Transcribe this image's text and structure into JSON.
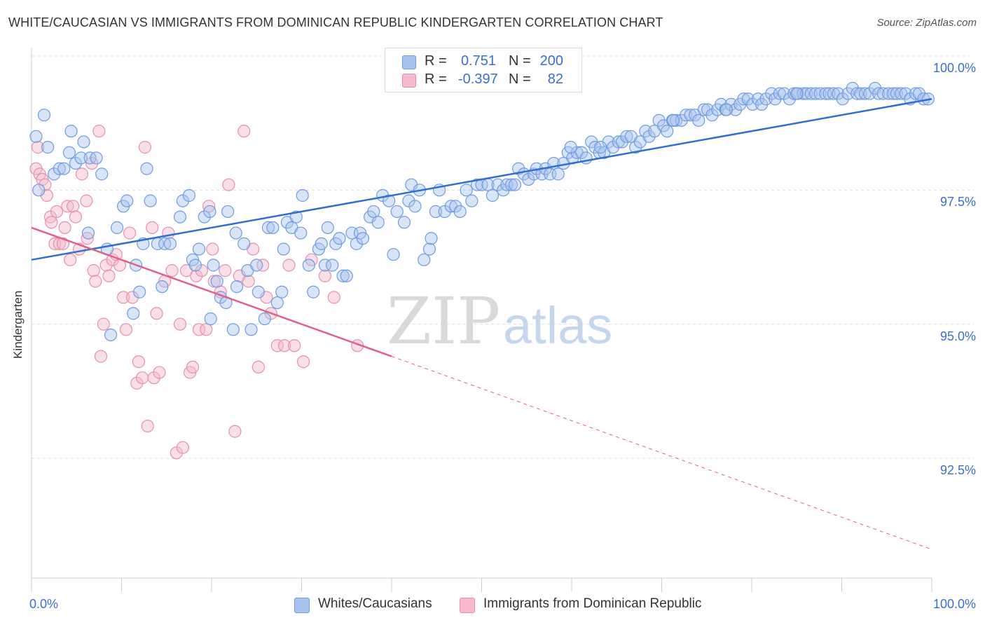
{
  "title": "WHITE/CAUCASIAN VS IMMIGRANTS FROM DOMINICAN REPUBLIC KINDERGARTEN CORRELATION CHART",
  "source": "Source: ZipAtlas.com",
  "watermark": {
    "zip": "ZIP",
    "atlas": "atlas"
  },
  "legend": {
    "rows": [
      {
        "r_label": "R =",
        "r_value": "0.751",
        "n_label": "N =",
        "n_value": "200",
        "color": "#a8c4ee"
      },
      {
        "r_label": "R =",
        "r_value": "-0.397",
        "n_label": "N =",
        "n_value": "82",
        "color": "#f5b8cc"
      }
    ]
  },
  "bottom_legend": [
    "Whites/Caucasians",
    "Immigrants from Dominican Republic"
  ],
  "colors": {
    "blue_fill": "#a8c4ee",
    "blue_line": "#2f6fcf",
    "pink_fill": "#f5b8cc",
    "pink_line": "#e0608a",
    "tick_text": "#3a6fd1"
  },
  "chart_data": {
    "type": "scatter",
    "xlabel": "",
    "ylabel": "Kindergarten",
    "x_tick_labels": [
      "0.0%",
      "100.0%"
    ],
    "y_tick_labels": [
      "100.0%",
      "97.5%",
      "95.0%",
      "92.5%"
    ],
    "xlim": [
      0,
      100
    ],
    "ylim": [
      90.2,
      100.5
    ],
    "y_ticks": [
      100.0,
      97.5,
      95.0,
      92.5
    ],
    "grid": true,
    "series": [
      {
        "name": "Whites/Caucasians",
        "color": "#a8c4ee",
        "trend": {
          "x": [
            0,
            100
          ],
          "y": [
            96.2,
            99.2
          ]
        },
        "points": [
          [
            0.5,
            98.5
          ],
          [
            1.4,
            98.9
          ],
          [
            1.8,
            98.3
          ],
          [
            2.5,
            97.8
          ],
          [
            3.1,
            97.9
          ],
          [
            3.6,
            97.9
          ],
          [
            0.8,
            97.5
          ],
          [
            4.2,
            98.2
          ],
          [
            4.4,
            98.6
          ],
          [
            4.9,
            98.0
          ],
          [
            5.5,
            98.1
          ],
          [
            5.8,
            98.4
          ],
          [
            6.5,
            98.1
          ],
          [
            7.2,
            98.1
          ],
          [
            7.8,
            97.8
          ],
          [
            6.3,
            96.7
          ],
          [
            8.4,
            96.4
          ],
          [
            8.8,
            94.8
          ],
          [
            9.5,
            96.8
          ],
          [
            10.2,
            97.2
          ],
          [
            10.6,
            97.3
          ],
          [
            11.3,
            95.2
          ],
          [
            11.6,
            96.1
          ],
          [
            12.0,
            95.6
          ],
          [
            12.4,
            96.5
          ],
          [
            12.8,
            97.9
          ],
          [
            13.2,
            97.3
          ],
          [
            14.0,
            96.5
          ],
          [
            14.5,
            95.7
          ],
          [
            14.8,
            96.5
          ],
          [
            15.4,
            96.5
          ],
          [
            16.5,
            97.0
          ],
          [
            16.8,
            97.3
          ],
          [
            17.5,
            97.4
          ],
          [
            17.9,
            96.2
          ],
          [
            18.2,
            96.1
          ],
          [
            18.6,
            96.4
          ],
          [
            19.2,
            97.0
          ],
          [
            19.8,
            97.1
          ],
          [
            19.9,
            95.1
          ],
          [
            20.2,
            96.1
          ],
          [
            20.6,
            95.8
          ],
          [
            21.0,
            95.5
          ],
          [
            21.6,
            95.4
          ],
          [
            21.8,
            97.1
          ],
          [
            22.4,
            94.9
          ],
          [
            22.8,
            95.7
          ],
          [
            22.7,
            96.7
          ],
          [
            23.6,
            96.5
          ],
          [
            24.0,
            96.0
          ],
          [
            24.4,
            94.9
          ],
          [
            25.0,
            96.1
          ],
          [
            25.2,
            95.6
          ],
          [
            25.9,
            95.1
          ],
          [
            26.3,
            96.8
          ],
          [
            26.8,
            96.8
          ],
          [
            27.3,
            95.4
          ],
          [
            27.8,
            95.6
          ],
          [
            28.0,
            96.4
          ],
          [
            28.4,
            96.9
          ],
          [
            28.9,
            96.8
          ],
          [
            29.4,
            97.0
          ],
          [
            29.9,
            96.7
          ],
          [
            30.1,
            97.4
          ],
          [
            30.8,
            96.1
          ],
          [
            31.3,
            95.6
          ],
          [
            31.9,
            96.4
          ],
          [
            32.2,
            96.5
          ],
          [
            32.6,
            96.1
          ],
          [
            32.9,
            96.8
          ],
          [
            33.4,
            96.1
          ],
          [
            33.8,
            96.5
          ],
          [
            34.2,
            96.6
          ],
          [
            34.6,
            95.9
          ],
          [
            35.0,
            95.9
          ],
          [
            35.6,
            96.7
          ],
          [
            36.1,
            96.5
          ],
          [
            36.5,
            96.7
          ],
          [
            36.8,
            96.6
          ],
          [
            37.6,
            97.0
          ],
          [
            38.0,
            97.1
          ],
          [
            38.5,
            96.9
          ],
          [
            39.0,
            97.4
          ],
          [
            39.7,
            97.3
          ],
          [
            40.2,
            96.3
          ],
          [
            40.6,
            97.1
          ],
          [
            41.4,
            96.9
          ],
          [
            41.9,
            97.3
          ],
          [
            42.2,
            97.6
          ],
          [
            42.6,
            97.2
          ],
          [
            43.1,
            97.5
          ],
          [
            43.6,
            96.2
          ],
          [
            44.2,
            96.4
          ],
          [
            44.4,
            96.6
          ],
          [
            44.9,
            97.1
          ],
          [
            45.3,
            97.5
          ],
          [
            45.9,
            97.1
          ],
          [
            46.6,
            97.2
          ],
          [
            47.1,
            97.2
          ],
          [
            47.6,
            97.1
          ],
          [
            48.3,
            97.5
          ],
          [
            48.9,
            97.3
          ],
          [
            49.5,
            97.6
          ],
          [
            50.0,
            97.6
          ],
          [
            50.7,
            97.6
          ],
          [
            51.2,
            97.4
          ],
          [
            51.8,
            97.6
          ],
          [
            52.4,
            97.5
          ],
          [
            52.8,
            97.6
          ],
          [
            53.3,
            97.6
          ],
          [
            53.7,
            97.6
          ],
          [
            54.1,
            97.9
          ],
          [
            54.7,
            97.8
          ],
          [
            55.2,
            97.7
          ],
          [
            55.8,
            97.8
          ],
          [
            56.1,
            97.9
          ],
          [
            56.7,
            97.8
          ],
          [
            57.1,
            97.9
          ],
          [
            57.6,
            97.8
          ],
          [
            58.0,
            98.0
          ],
          [
            58.5,
            97.8
          ],
          [
            59.1,
            98.0
          ],
          [
            59.6,
            98.2
          ],
          [
            60.1,
            98.1
          ],
          [
            60.6,
            98.2
          ],
          [
            61.1,
            98.2
          ],
          [
            61.6,
            98.1
          ],
          [
            62.2,
            98.4
          ],
          [
            62.6,
            98.3
          ],
          [
            63.1,
            98.2
          ],
          [
            63.6,
            98.2
          ],
          [
            64.1,
            98.4
          ],
          [
            64.6,
            98.3
          ],
          [
            65.2,
            98.4
          ],
          [
            65.6,
            98.4
          ],
          [
            66.1,
            98.5
          ],
          [
            66.6,
            98.5
          ],
          [
            67.1,
            98.3
          ],
          [
            67.6,
            98.4
          ],
          [
            68.2,
            98.6
          ],
          [
            68.6,
            98.5
          ],
          [
            69.2,
            98.6
          ],
          [
            69.7,
            98.8
          ],
          [
            70.2,
            98.7
          ],
          [
            70.6,
            98.6
          ],
          [
            71.2,
            98.8
          ],
          [
            71.6,
            98.8
          ],
          [
            72.2,
            98.8
          ],
          [
            72.7,
            98.9
          ],
          [
            73.2,
            98.9
          ],
          [
            73.7,
            98.9
          ],
          [
            74.1,
            98.8
          ],
          [
            74.7,
            99.0
          ],
          [
            75.1,
            99.0
          ],
          [
            75.6,
            98.9
          ],
          [
            76.2,
            99.0
          ],
          [
            76.6,
            99.1
          ],
          [
            77.1,
            99.0
          ],
          [
            77.7,
            99.1
          ],
          [
            78.2,
            99.0
          ],
          [
            78.7,
            99.1
          ],
          [
            79.1,
            99.2
          ],
          [
            79.6,
            99.2
          ],
          [
            80.1,
            99.1
          ],
          [
            80.7,
            99.2
          ],
          [
            81.1,
            99.1
          ],
          [
            81.6,
            99.2
          ],
          [
            82.2,
            99.3
          ],
          [
            82.6,
            99.2
          ],
          [
            83.1,
            99.3
          ],
          [
            83.6,
            99.3
          ],
          [
            84.2,
            99.2
          ],
          [
            84.7,
            99.3
          ],
          [
            85.1,
            99.3
          ],
          [
            85.7,
            99.3
          ],
          [
            86.1,
            99.3
          ],
          [
            86.6,
            99.3
          ],
          [
            87.1,
            99.3
          ],
          [
            87.6,
            99.3
          ],
          [
            88.2,
            99.3
          ],
          [
            88.6,
            99.3
          ],
          [
            89.1,
            99.3
          ],
          [
            89.6,
            99.3
          ],
          [
            90.1,
            99.2
          ],
          [
            90.7,
            99.3
          ],
          [
            91.2,
            99.4
          ],
          [
            91.7,
            99.3
          ],
          [
            92.1,
            99.3
          ],
          [
            92.6,
            99.3
          ],
          [
            93.1,
            99.3
          ],
          [
            93.7,
            99.4
          ],
          [
            94.1,
            99.3
          ],
          [
            94.6,
            99.3
          ],
          [
            95.2,
            99.3
          ],
          [
            95.7,
            99.3
          ],
          [
            96.1,
            99.3
          ],
          [
            96.6,
            99.3
          ],
          [
            97.1,
            99.3
          ],
          [
            97.6,
            99.2
          ],
          [
            98.2,
            99.3
          ],
          [
            98.6,
            99.3
          ],
          [
            99.1,
            99.2
          ],
          [
            99.6,
            99.2
          ],
          [
            59.9,
            98.3
          ],
          [
            63.2,
            98.3
          ],
          [
            71.3,
            98.8
          ],
          [
            77.2,
            99.0
          ],
          [
            85.0,
            99.3
          ]
        ]
      },
      {
        "name": "Immigrants from Dominican Republic",
        "color": "#f5b8cc",
        "trend": {
          "x": [
            0,
            40
          ],
          "y": [
            96.8,
            94.4
          ]
        },
        "trend_dashed": {
          "x": [
            40,
            100
          ],
          "y": [
            94.4,
            90.8
          ]
        },
        "points": [
          [
            0.5,
            97.9
          ],
          [
            0.7,
            98.3
          ],
          [
            0.9,
            97.8
          ],
          [
            1.2,
            97.7
          ],
          [
            1.5,
            97.6
          ],
          [
            1.7,
            97.4
          ],
          [
            2.1,
            97.0
          ],
          [
            2.2,
            96.9
          ],
          [
            2.6,
            96.5
          ],
          [
            2.8,
            97.1
          ],
          [
            3.1,
            96.5
          ],
          [
            3.5,
            96.5
          ],
          [
            3.7,
            96.8
          ],
          [
            4.0,
            97.2
          ],
          [
            4.3,
            96.2
          ],
          [
            4.6,
            97.2
          ],
          [
            4.9,
            97.0
          ],
          [
            5.3,
            96.4
          ],
          [
            5.6,
            97.8
          ],
          [
            6.1,
            97.3
          ],
          [
            6.2,
            96.6
          ],
          [
            6.7,
            98.0
          ],
          [
            6.9,
            96.0
          ],
          [
            7.1,
            95.8
          ],
          [
            7.5,
            98.6
          ],
          [
            7.7,
            94.4
          ],
          [
            8.0,
            95.0
          ],
          [
            8.3,
            96.1
          ],
          [
            8.6,
            95.9
          ],
          [
            9.0,
            96.2
          ],
          [
            9.4,
            96.3
          ],
          [
            9.8,
            96.1
          ],
          [
            10.2,
            95.5
          ],
          [
            10.5,
            94.9
          ],
          [
            10.9,
            96.7
          ],
          [
            11.2,
            95.5
          ],
          [
            11.7,
            93.9
          ],
          [
            11.9,
            94.3
          ],
          [
            12.3,
            94.0
          ],
          [
            12.6,
            98.3
          ],
          [
            12.9,
            93.1
          ],
          [
            13.4,
            96.8
          ],
          [
            13.6,
            94.0
          ],
          [
            13.9,
            95.2
          ],
          [
            14.2,
            94.1
          ],
          [
            14.8,
            95.8
          ],
          [
            15.2,
            96.7
          ],
          [
            15.6,
            96.0
          ],
          [
            16.1,
            92.6
          ],
          [
            16.5,
            95.0
          ],
          [
            16.8,
            92.7
          ],
          [
            17.2,
            96.0
          ],
          [
            17.6,
            94.1
          ],
          [
            17.9,
            94.2
          ],
          [
            18.3,
            95.9
          ],
          [
            18.6,
            94.9
          ],
          [
            18.9,
            96.0
          ],
          [
            19.4,
            94.9
          ],
          [
            19.7,
            97.2
          ],
          [
            20.1,
            96.4
          ],
          [
            20.3,
            95.8
          ],
          [
            21.0,
            95.6
          ],
          [
            21.5,
            96.0
          ],
          [
            21.9,
            97.6
          ],
          [
            22.6,
            93.0
          ],
          [
            23.1,
            95.9
          ],
          [
            23.6,
            98.6
          ],
          [
            24.1,
            95.8
          ],
          [
            24.6,
            96.4
          ],
          [
            25.2,
            94.2
          ],
          [
            25.7,
            96.1
          ],
          [
            26.1,
            95.5
          ],
          [
            26.6,
            95.2
          ],
          [
            27.3,
            94.6
          ],
          [
            28.1,
            94.6
          ],
          [
            28.6,
            96.1
          ],
          [
            29.2,
            94.6
          ],
          [
            30.2,
            94.3
          ],
          [
            31.1,
            96.2
          ],
          [
            32.6,
            95.9
          ],
          [
            33.6,
            95.5
          ],
          [
            36.2,
            94.6
          ]
        ]
      }
    ]
  }
}
